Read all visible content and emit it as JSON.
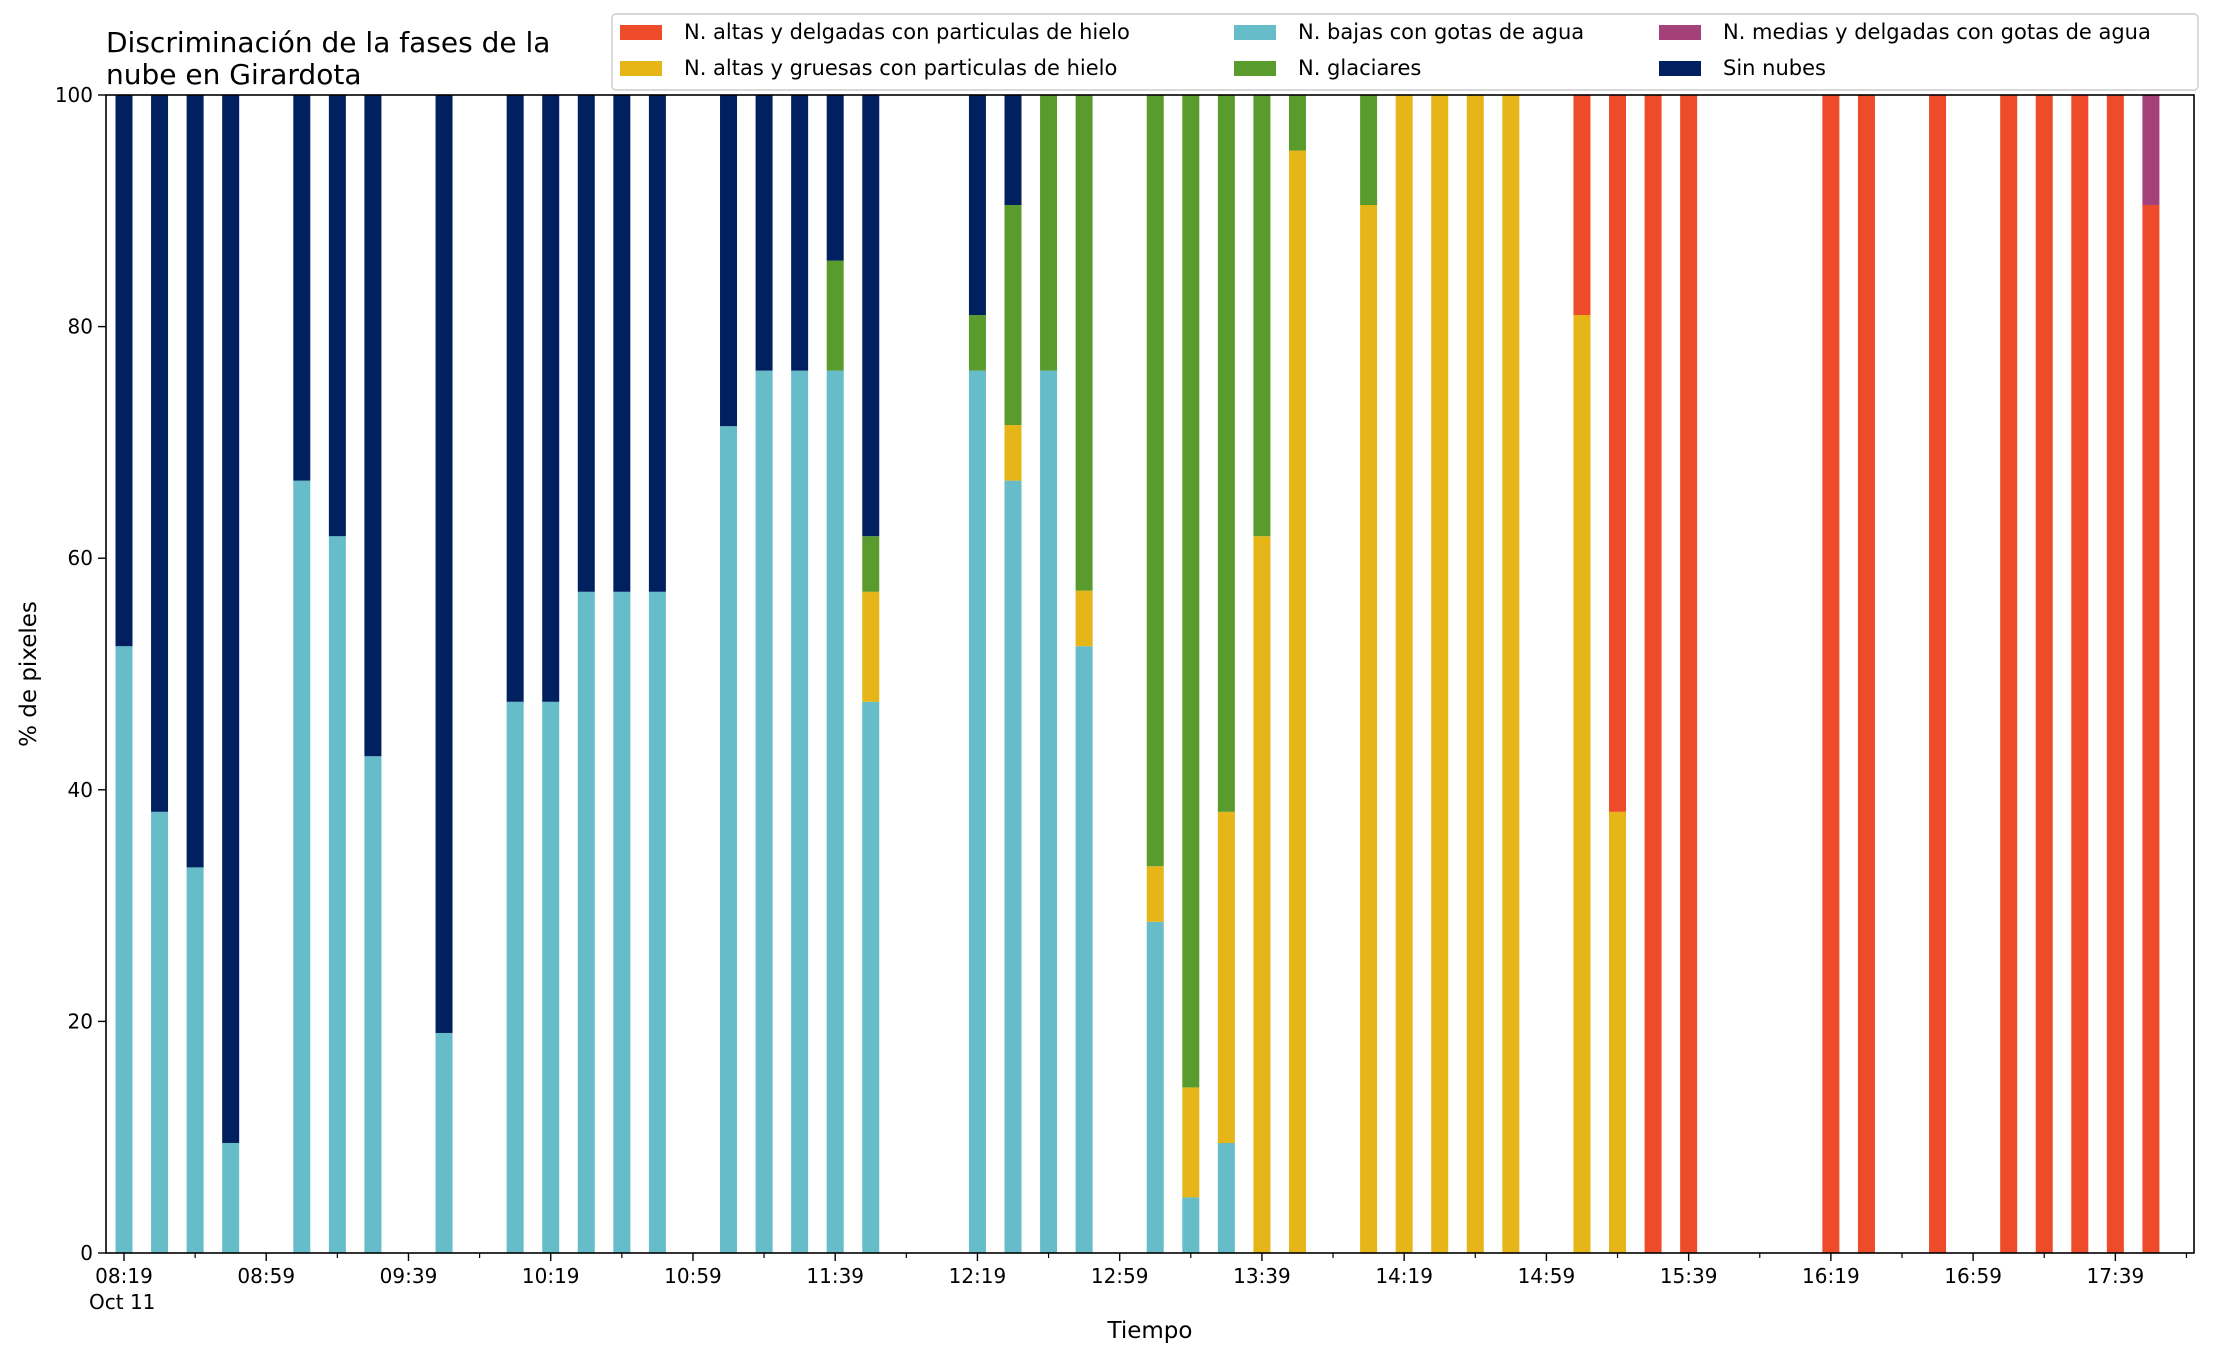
{
  "chart_data": {
    "type": "bar",
    "stacked": true,
    "title_lines": [
      "Discriminación de la fases de la",
      "nube en Girardota"
    ],
    "xlabel": "Tiempo",
    "ylabel": "% de pixeles",
    "ylim": [
      0,
      100
    ],
    "yticks": [
      0,
      20,
      40,
      60,
      80,
      100
    ],
    "xlim_minutes": [
      0,
      580
    ],
    "x_tick_labels": [
      {
        "label": "08:19",
        "minute": 0
      },
      {
        "label": "08:59",
        "minute": 40
      },
      {
        "label": "09:39",
        "minute": 80
      },
      {
        "label": "10:19",
        "minute": 120
      },
      {
        "label": "10:59",
        "minute": 160
      },
      {
        "label": "11:39",
        "minute": 200
      },
      {
        "label": "12:19",
        "minute": 240
      },
      {
        "label": "12:59",
        "minute": 280
      },
      {
        "label": "13:39",
        "minute": 320
      },
      {
        "label": "14:19",
        "minute": 360
      },
      {
        "label": "14:59",
        "minute": 400
      },
      {
        "label": "15:39",
        "minute": 440
      },
      {
        "label": "16:19",
        "minute": 480
      },
      {
        "label": "16:59",
        "minute": 520
      },
      {
        "label": "17:39",
        "minute": 560
      }
    ],
    "x_date_label": "Oct 11",
    "x_minor_tick_minutes": [
      20,
      60,
      100,
      140,
      180,
      220,
      260,
      300,
      340,
      380,
      420,
      460,
      500,
      540,
      580
    ],
    "legend": {
      "placement": "top-right",
      "columns": [
        [
          "N. altas y delgadas con particulas de hielo",
          "N. altas y gruesas con particulas de hielo"
        ],
        [
          "N. bajas con gotas de agua",
          "N. glaciares"
        ],
        [
          "N. medias y delgadas con gotas de agua",
          "Sin nubes"
        ]
      ]
    },
    "series": [
      {
        "name": "N. bajas con gotas de agua",
        "color": "#66bcc9"
      },
      {
        "name": "N. altas y gruesas con particulas de hielo",
        "color": "#e6b517"
      },
      {
        "name": "N. glaciares",
        "color": "#5a9b2d"
      },
      {
        "name": "N. altas y delgadas con particulas de hielo",
        "color": "#ee4b2b"
      },
      {
        "name": "N. medias y delgadas con gotas de agua",
        "color": "#a4417a"
      },
      {
        "name": "Sin nubes",
        "color": "#00205f"
      }
    ],
    "bars": [
      {
        "time": "08:19",
        "minute": 0,
        "values": [
          52.4,
          0,
          0,
          0,
          0,
          47.6
        ]
      },
      {
        "time": "08:29",
        "minute": 10,
        "values": [
          38.1,
          0,
          0,
          0,
          0,
          61.9
        ]
      },
      {
        "time": "08:39",
        "minute": 20,
        "values": [
          33.3,
          0,
          0,
          0,
          0,
          66.7
        ]
      },
      {
        "time": "08:49",
        "minute": 30,
        "values": [
          9.5,
          0,
          0,
          0,
          0,
          90.5
        ]
      },
      {
        "time": "09:09",
        "minute": 50,
        "values": [
          66.7,
          0,
          0,
          0,
          0,
          33.3
        ]
      },
      {
        "time": "09:19",
        "minute": 60,
        "values": [
          61.9,
          0,
          0,
          0,
          0,
          38.1
        ]
      },
      {
        "time": "09:29",
        "minute": 70,
        "values": [
          42.9,
          0,
          0,
          0,
          0,
          57.1
        ]
      },
      {
        "time": "09:49",
        "minute": 90,
        "values": [
          19.0,
          0,
          0,
          0,
          0,
          81.0
        ]
      },
      {
        "time": "10:09",
        "minute": 110,
        "values": [
          47.6,
          0,
          0,
          0,
          0,
          52.4
        ]
      },
      {
        "time": "10:19",
        "minute": 120,
        "values": [
          47.6,
          0,
          0,
          0,
          0,
          52.4
        ]
      },
      {
        "time": "10:29",
        "minute": 130,
        "values": [
          57.1,
          0,
          0,
          0,
          0,
          42.9
        ]
      },
      {
        "time": "10:39",
        "minute": 140,
        "values": [
          57.1,
          0,
          0,
          0,
          0,
          42.9
        ]
      },
      {
        "time": "10:49",
        "minute": 150,
        "values": [
          57.1,
          0,
          0,
          0,
          0,
          42.9
        ]
      },
      {
        "time": "11:09",
        "minute": 170,
        "values": [
          71.4,
          0,
          0,
          0,
          0,
          28.6
        ]
      },
      {
        "time": "11:19",
        "minute": 180,
        "values": [
          76.2,
          0,
          0,
          0,
          0,
          23.8
        ]
      },
      {
        "time": "11:29",
        "minute": 190,
        "values": [
          76.2,
          0,
          0,
          0,
          0,
          23.8
        ]
      },
      {
        "time": "11:39",
        "minute": 200,
        "values": [
          76.2,
          0,
          9.5,
          0,
          0,
          14.3
        ]
      },
      {
        "time": "11:49",
        "minute": 210,
        "values": [
          47.6,
          9.5,
          4.8,
          0,
          0,
          38.1
        ]
      },
      {
        "time": "12:19",
        "minute": 240,
        "values": [
          76.2,
          0,
          4.8,
          0,
          0,
          19.0
        ]
      },
      {
        "time": "12:29",
        "minute": 250,
        "values": [
          66.7,
          4.8,
          19.0,
          0,
          0,
          9.5
        ]
      },
      {
        "time": "12:39",
        "minute": 260,
        "values": [
          76.2,
          0,
          23.8,
          0,
          0,
          0
        ]
      },
      {
        "time": "12:49",
        "minute": 270,
        "values": [
          52.4,
          4.8,
          42.8,
          0,
          0,
          0
        ]
      },
      {
        "time": "13:09",
        "minute": 290,
        "values": [
          28.6,
          4.8,
          66.6,
          0,
          0,
          0
        ]
      },
      {
        "time": "13:19",
        "minute": 300,
        "values": [
          4.8,
          9.5,
          85.7,
          0,
          0,
          0
        ]
      },
      {
        "time": "13:29",
        "minute": 310,
        "values": [
          9.5,
          28.6,
          61.9,
          0,
          0,
          0
        ]
      },
      {
        "time": "13:39",
        "minute": 320,
        "values": [
          0,
          61.9,
          38.1,
          0,
          0,
          0
        ]
      },
      {
        "time": "13:49",
        "minute": 330,
        "values": [
          0,
          95.2,
          4.8,
          0,
          0,
          0
        ]
      },
      {
        "time": "14:09",
        "minute": 350,
        "values": [
          0,
          90.5,
          9.5,
          0,
          0,
          0
        ]
      },
      {
        "time": "14:19",
        "minute": 360,
        "values": [
          0,
          100,
          0,
          0,
          0,
          0
        ]
      },
      {
        "time": "14:29",
        "minute": 370,
        "values": [
          0,
          100,
          0,
          0,
          0,
          0
        ]
      },
      {
        "time": "14:39",
        "minute": 380,
        "values": [
          0,
          100,
          0,
          0,
          0,
          0
        ]
      },
      {
        "time": "14:49",
        "minute": 390,
        "values": [
          0,
          100,
          0,
          0,
          0,
          0
        ]
      },
      {
        "time": "15:09",
        "minute": 410,
        "values": [
          0,
          81.0,
          0,
          19.0,
          0,
          0
        ]
      },
      {
        "time": "15:19",
        "minute": 420,
        "values": [
          0,
          38.1,
          0,
          61.9,
          0,
          0
        ]
      },
      {
        "time": "15:29",
        "minute": 430,
        "values": [
          0,
          0,
          0,
          100,
          0,
          0
        ]
      },
      {
        "time": "15:39",
        "minute": 440,
        "values": [
          0,
          0,
          0,
          100,
          0,
          0
        ]
      },
      {
        "time": "16:19",
        "minute": 480,
        "values": [
          0,
          0,
          0,
          100,
          0,
          0
        ]
      },
      {
        "time": "16:29",
        "minute": 490,
        "values": [
          0,
          0,
          0,
          100,
          0,
          0
        ]
      },
      {
        "time": "16:49",
        "minute": 510,
        "values": [
          0,
          0,
          0,
          100,
          0,
          0
        ]
      },
      {
        "time": "17:09",
        "minute": 530,
        "values": [
          0,
          0,
          0,
          100,
          0,
          0
        ]
      },
      {
        "time": "17:19",
        "minute": 540,
        "values": [
          0,
          0,
          0,
          100,
          0,
          0
        ]
      },
      {
        "time": "17:29",
        "minute": 550,
        "values": [
          0,
          0,
          0,
          100,
          0,
          0
        ]
      },
      {
        "time": "17:39",
        "minute": 560,
        "values": [
          0,
          0,
          0,
          100,
          0,
          0
        ]
      },
      {
        "time": "17:49",
        "minute": 570,
        "values": [
          0,
          0,
          0,
          90.5,
          9.5,
          0
        ]
      }
    ]
  }
}
